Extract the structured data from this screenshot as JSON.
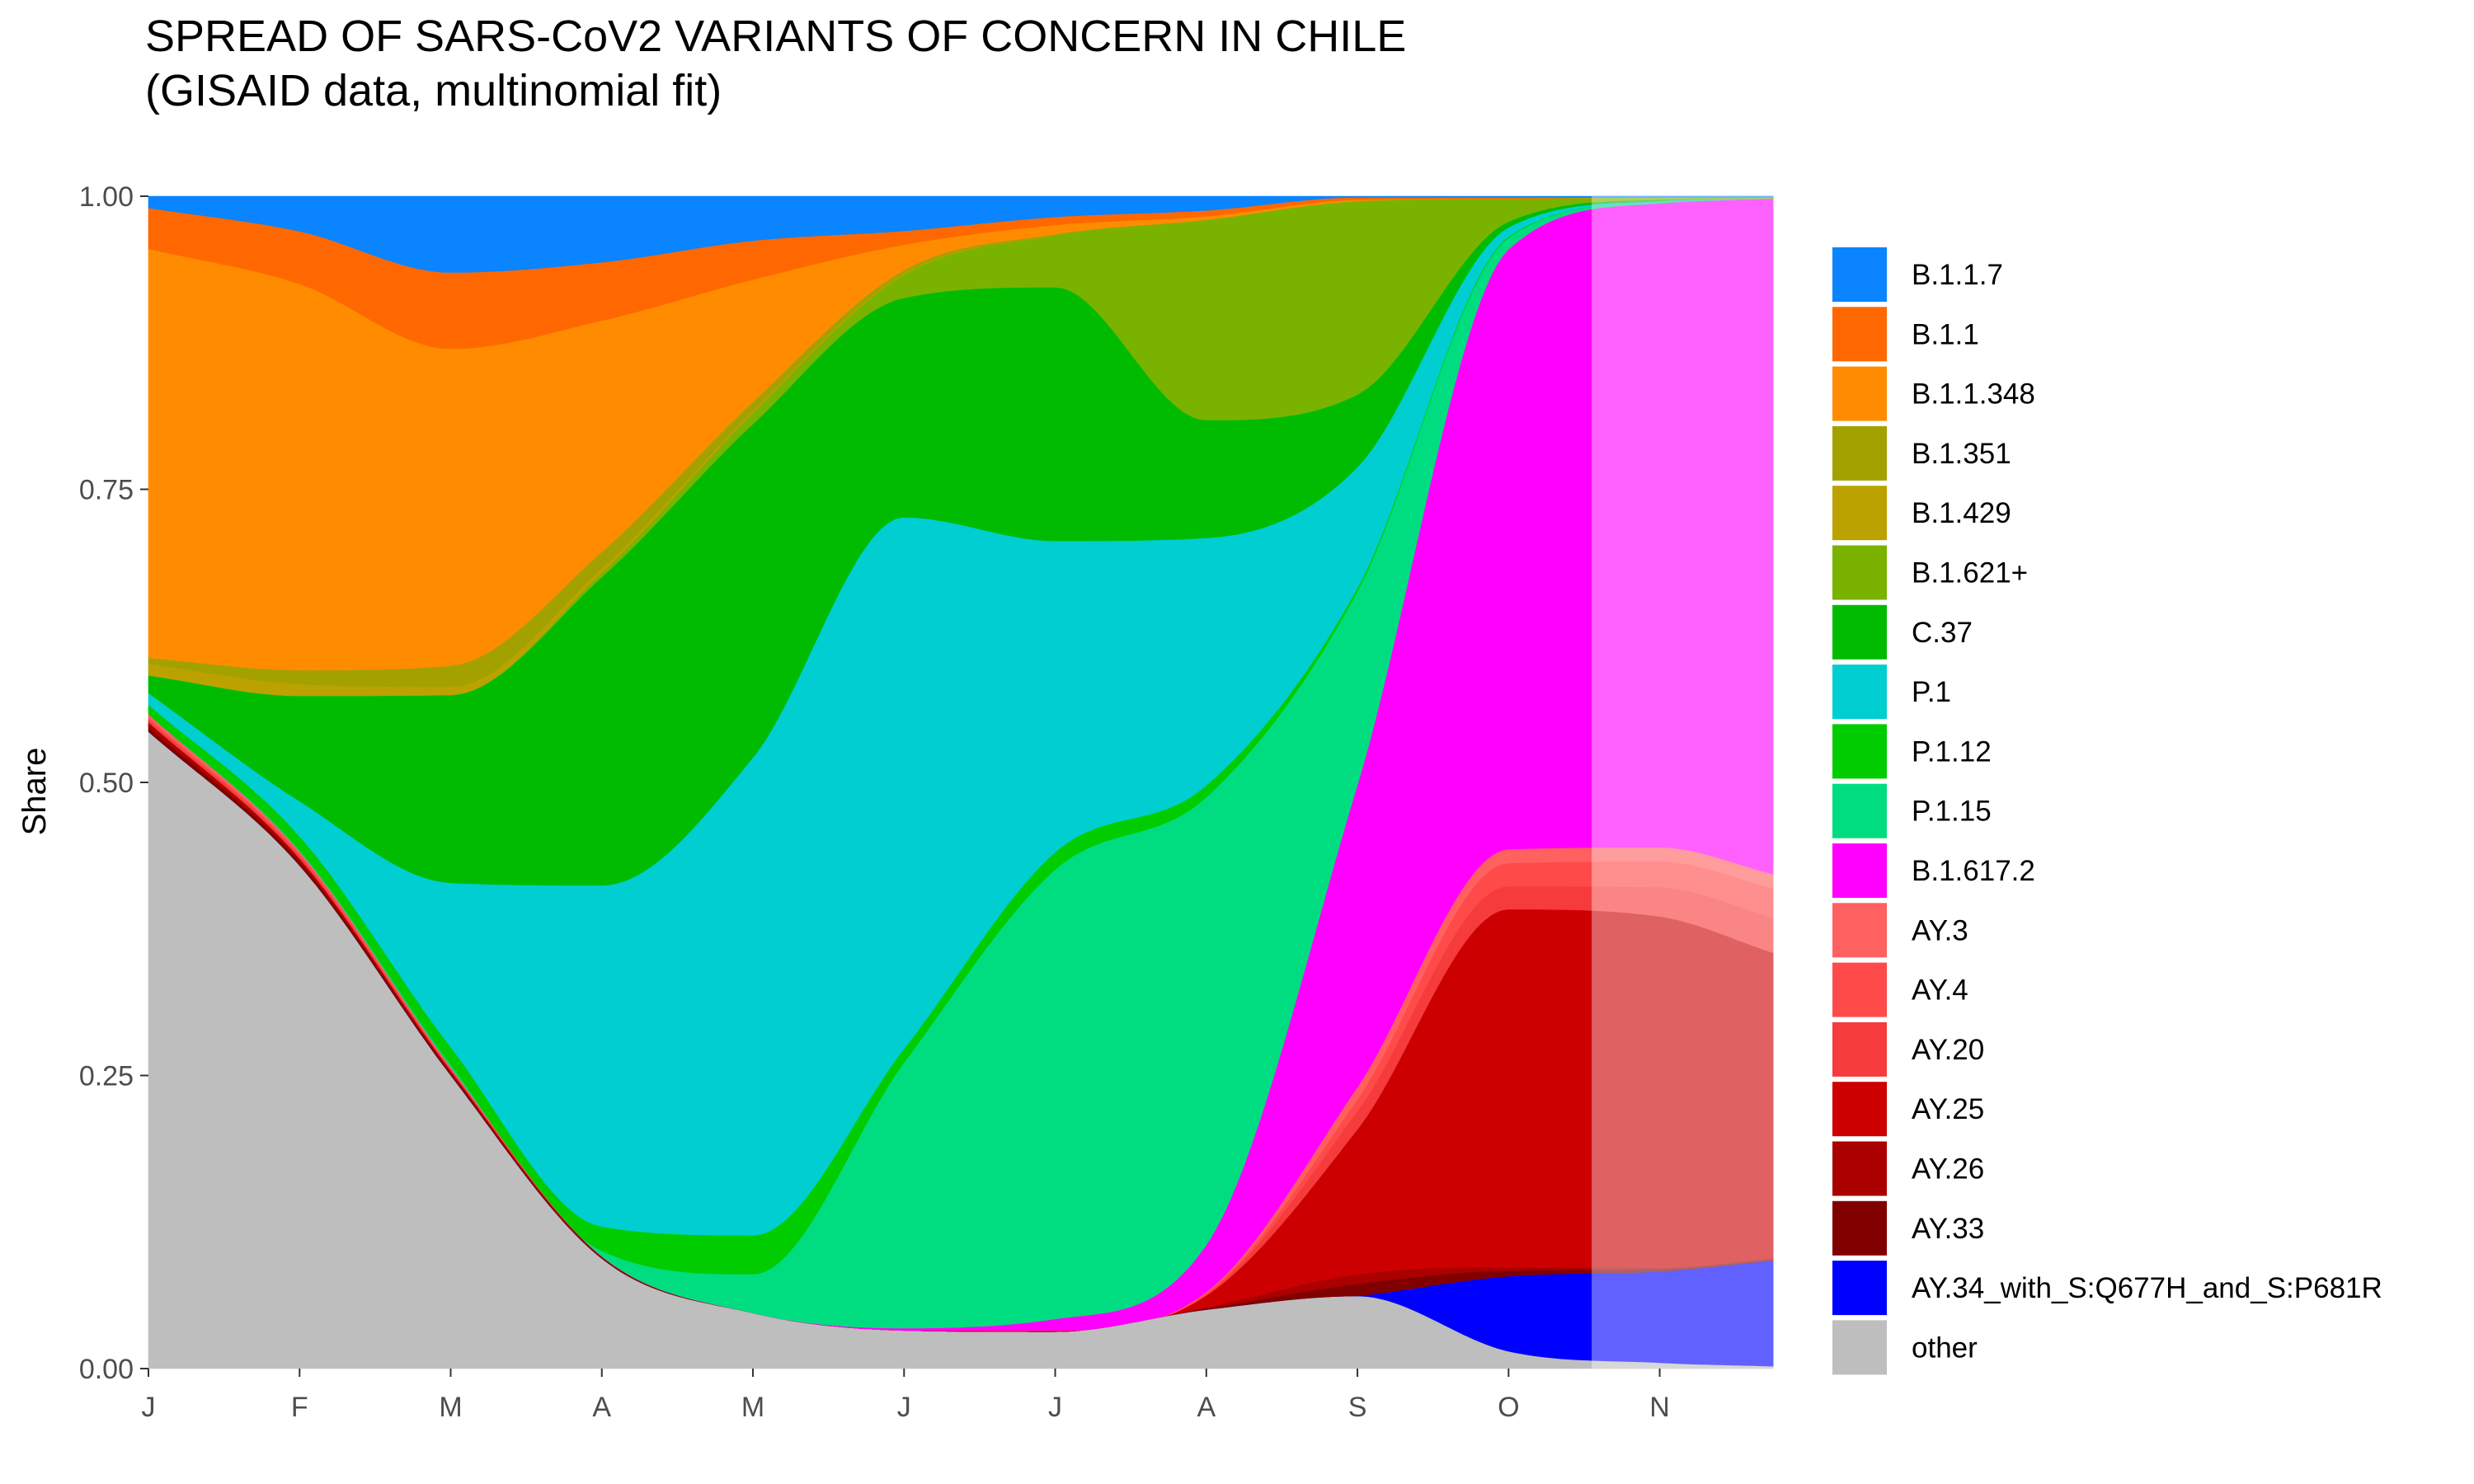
{
  "chart_data": {
    "type": "area",
    "title": "SPREAD OF SARS-CoV2 VARIANTS OF CONCERN IN CHILE",
    "subtitle": "(GISAID data, multinomial fit)",
    "xlabel": "",
    "ylabel": "Share",
    "x_tick_labels": [
      "J",
      "F",
      "M",
      "A",
      "M",
      "J",
      "J",
      "A",
      "S",
      "O",
      "N"
    ],
    "y_tick_labels": [
      "0.00",
      "0.25",
      "0.50",
      "0.75",
      "1.00"
    ],
    "x_month_index": [
      0,
      1,
      2,
      3,
      4,
      5,
      6,
      7,
      8,
      9,
      10,
      10.75
    ],
    "ylim": [
      0,
      1
    ],
    "stacking_order_bottom_to_top": [
      "other",
      "AY.34_with_S:Q677H_and_S:P681R",
      "AY.33",
      "AY.26",
      "AY.25",
      "AY.20",
      "AY.4",
      "AY.3",
      "B.1.617.2",
      "P.1.15",
      "P.1.12",
      "P.1",
      "C.37",
      "B.1.621+",
      "B.1.429",
      "B.1.351",
      "B.1.1.348",
      "B.1.1",
      "B.1.1.7"
    ],
    "series": [
      {
        "name": "other",
        "color": "#BEBEBE",
        "values": [
          0.545,
          0.43,
          0.25,
          0.1,
          0.05,
          0.033,
          0.032,
          0.05,
          0.06,
          0.015,
          0.005,
          0.002
        ]
      },
      {
        "name": "AY.34_with_S:Q677H_and_S:P681R",
        "color": "#0000FF",
        "values": [
          0,
          0,
          0,
          0,
          0,
          0,
          0,
          0,
          0.0,
          0.065,
          0.078,
          0.09
        ]
      },
      {
        "name": "AY.33",
        "color": "#800000",
        "values": [
          0.004,
          0.003,
          0.002,
          0.001,
          0,
          0,
          0,
          0.001,
          0.01,
          0.005,
          0.002,
          0.001
        ]
      },
      {
        "name": "AY.26",
        "color": "#AA0000",
        "values": [
          0.004,
          0.003,
          0.002,
          0.001,
          0,
          0,
          0,
          0.001,
          0.008,
          0.003,
          0.001,
          0.001
        ]
      },
      {
        "name": "AY.25",
        "color": "#CC0000",
        "values": [
          0,
          0,
          0,
          0,
          0,
          0,
          0.001,
          0.01,
          0.12,
          0.31,
          0.3,
          0.26
        ]
      },
      {
        "name": "AY.20",
        "color": "#F53B3B",
        "values": [
          0.002,
          0.002,
          0.001,
          0,
          0,
          0,
          0,
          0.001,
          0.015,
          0.02,
          0.025,
          0.03
        ]
      },
      {
        "name": "AY.4",
        "color": "#FF4A4A",
        "values": [
          0.002,
          0.002,
          0.001,
          0,
          0,
          0,
          0,
          0.001,
          0.01,
          0.02,
          0.022,
          0.025
        ]
      },
      {
        "name": "AY.3",
        "color": "#FF6060",
        "values": [
          0.003,
          0.002,
          0.001,
          0,
          0,
          0,
          0,
          0.001,
          0.01,
          0.012,
          0.012,
          0.012
        ]
      },
      {
        "name": "B.1.617.2",
        "color": "#FF00FF",
        "values": [
          0,
          0,
          0,
          0,
          0,
          0.002,
          0.01,
          0.04,
          0.25,
          0.52,
          0.55,
          0.575
        ]
      },
      {
        "name": "P.1.15",
        "color": "#00DD80",
        "values": [
          0,
          0.001,
          0.002,
          0.005,
          0.035,
          0.23,
          0.39,
          0.38,
          0.16,
          0.01,
          0.001,
          0.0
        ]
      },
      {
        "name": "P.1.12",
        "color": "#00CC00",
        "values": [
          0.008,
          0.012,
          0.015,
          0.022,
          0.035,
          0.012,
          0.015,
          0.01,
          0.003,
          0.001,
          0,
          0
        ]
      },
      {
        "name": "P.1",
        "color": "#00CED1",
        "values": [
          0.01,
          0.03,
          0.14,
          0.31,
          0.43,
          0.46,
          0.27,
          0.21,
          0.1,
          0.008,
          0.001,
          0.0
        ]
      },
      {
        "name": "C.37",
        "color": "#00BB00",
        "values": [
          0.015,
          0.09,
          0.16,
          0.28,
          0.3,
          0.19,
          0.22,
          0.1,
          0.06,
          0.005,
          0.001,
          0.0
        ]
      },
      {
        "name": "B.1.621+",
        "color": "#7AB200",
        "values": [
          0,
          0,
          0,
          0.004,
          0.01,
          0.02,
          0.045,
          0.17,
          0.16,
          0.02,
          0.002,
          0.001
        ]
      },
      {
        "name": "B.1.429",
        "color": "#BBA200",
        "values": [
          0.01,
          0.01,
          0.007,
          0.004,
          0.002,
          0.001,
          0,
          0,
          0,
          0,
          0,
          0
        ]
      },
      {
        "name": "B.1.351",
        "color": "#A3A100",
        "values": [
          0.005,
          0.012,
          0.018,
          0.015,
          0.008,
          0.003,
          0.001,
          0,
          0,
          0,
          0,
          0
        ]
      },
      {
        "name": "B.1.1.348",
        "color": "#FF8C00",
        "values": [
          0.35,
          0.33,
          0.27,
          0.21,
          0.11,
          0.022,
          0.008,
          0.003,
          0.001,
          0,
          0,
          0
        ]
      },
      {
        "name": "B.1.1",
        "color": "#FF6800",
        "values": [
          0.035,
          0.045,
          0.065,
          0.053,
          0.035,
          0.012,
          0.007,
          0.005,
          0.002,
          0.001,
          0,
          0
        ]
      },
      {
        "name": "B.1.1.7",
        "color": "#0A84FF",
        "values": [
          0.01,
          0.03,
          0.065,
          0.06,
          0.04,
          0.03,
          0.018,
          0.012,
          0.001,
          0.001,
          0.001,
          0.001
        ]
      }
    ],
    "legend_placement": "right",
    "shaded_region_start_month_index": 9.55,
    "grid": false
  },
  "legend": {
    "items": [
      {
        "label": "B.1.1.7",
        "color": "#0A84FF"
      },
      {
        "label": "B.1.1",
        "color": "#FF6800"
      },
      {
        "label": "B.1.1.348",
        "color": "#FF8C00"
      },
      {
        "label": "B.1.351",
        "color": "#A3A100"
      },
      {
        "label": "B.1.429",
        "color": "#BBA200"
      },
      {
        "label": "B.1.621+",
        "color": "#7AB200"
      },
      {
        "label": "C.37",
        "color": "#00BB00"
      },
      {
        "label": "P.1",
        "color": "#00CED1"
      },
      {
        "label": "P.1.12",
        "color": "#00CC00"
      },
      {
        "label": "P.1.15",
        "color": "#00DD80"
      },
      {
        "label": "B.1.617.2",
        "color": "#FF00FF"
      },
      {
        "label": "AY.3",
        "color": "#FF6060"
      },
      {
        "label": "AY.4",
        "color": "#FF4A4A"
      },
      {
        "label": "AY.20",
        "color": "#F53B3B"
      },
      {
        "label": "AY.25",
        "color": "#CC0000"
      },
      {
        "label": "AY.26",
        "color": "#AA0000"
      },
      {
        "label": "AY.33",
        "color": "#800000"
      },
      {
        "label": "AY.34_with_S:Q677H_and_S:P681R",
        "color": "#0000FF"
      },
      {
        "label": "other",
        "color": "#BEBEBE"
      }
    ]
  }
}
